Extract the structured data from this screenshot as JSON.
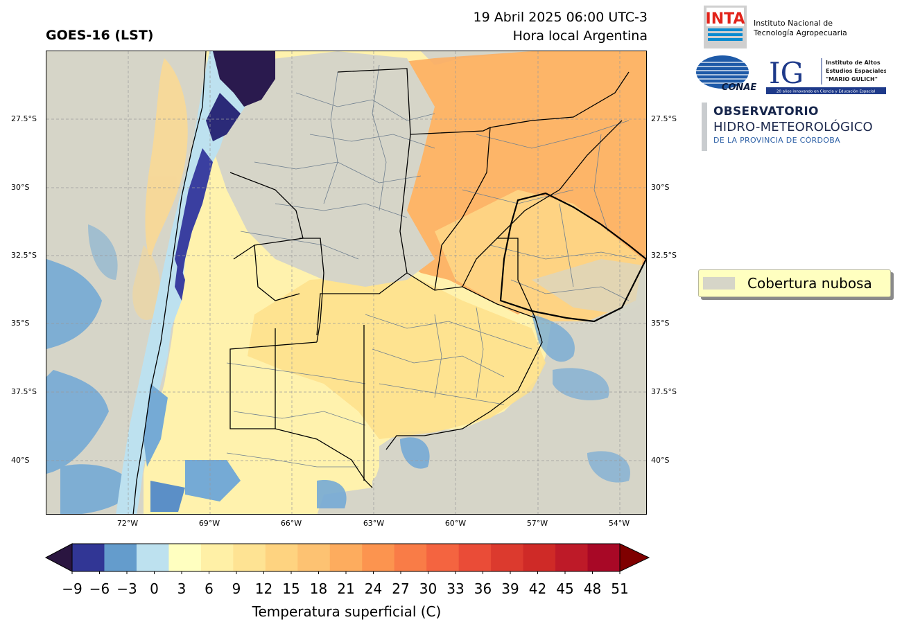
{
  "title_left": "GOES-16 (LST)",
  "title_right_line1": "19 Abril 2025 06:00 UTC-3",
  "title_right_line2": "Hora local Argentina",
  "map": {
    "lat_labels": [
      "27.5°S",
      "30°S",
      "32.5°S",
      "35°S",
      "37.5°S",
      "40°S"
    ],
    "lon_labels": [
      "72°W",
      "69°W",
      "66°W",
      "63°W",
      "60°W",
      "57°W",
      "54°W"
    ],
    "cloud_color": "#d6d5c8"
  },
  "legend": {
    "label": "Cobertura nubosa",
    "swatch_color": "#d6d5c8"
  },
  "logos": {
    "inta_mark": "INTA",
    "inta_line1": "Instituto Nacional de",
    "inta_line2": "Tecnología Agropecuaria",
    "conae": "CONAE",
    "ig_mark": "IG",
    "ig_line1": "Instituto de Altos",
    "ig_line2": "Estudios Espaciales",
    "ig_line3": "\"MARIO GULICH\"",
    "ig_footer": "20 años innovando en Ciencia y Educación Espacial",
    "obs_line1": "OBSERVATORIO",
    "obs_line2": "HIDRO-METEOROLÓGICO",
    "obs_line3": "DE LA PROVINCIA DE CÓRDOBA"
  },
  "colorbar": {
    "label": "Temperatura superficial (C)",
    "ticks": [
      "−9",
      "−6",
      "−3",
      "0",
      "3",
      "6",
      "9",
      "12",
      "15",
      "18",
      "21",
      "24",
      "27",
      "30",
      "33",
      "36",
      "39",
      "42",
      "45",
      "48",
      "51"
    ],
    "under_color": "#2a1540",
    "over_color": "#7f0000",
    "colors": [
      "#313695",
      "#649ccc",
      "#bde1ef",
      "#ffffc0",
      "#fff0a6",
      "#fee393",
      "#fed380",
      "#fdc272",
      "#fdac5e",
      "#fc944f",
      "#f97c47",
      "#f46440",
      "#ea4c37",
      "#dc3a2e",
      "#cf2a27",
      "#be1a28",
      "#a80826"
    ]
  }
}
